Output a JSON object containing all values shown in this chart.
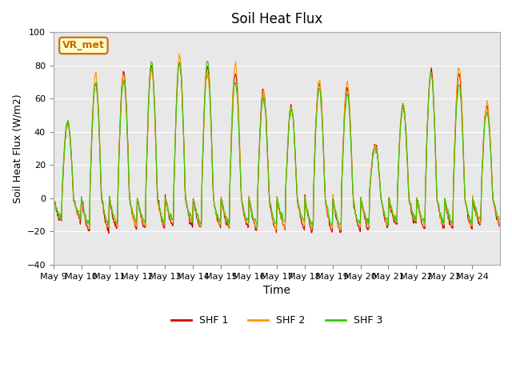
{
  "title": "Soil Heat Flux",
  "ylabel": "Soil Heat Flux (W/m2)",
  "xlabel": "Time",
  "ylim": [
    -40,
    100
  ],
  "yticks": [
    -40,
    -20,
    0,
    20,
    40,
    60,
    80,
    100
  ],
  "x_tick_labels": [
    "May 9",
    "May 10",
    "May 11",
    "May 12",
    "May 13",
    "May 14",
    "May 15",
    "May 16",
    "May 17",
    "May 18",
    "May 19",
    "May 20",
    "May 21",
    "May 22",
    "May 23",
    "May 24"
  ],
  "colors": {
    "SHF1": "#cc0000",
    "SHF2": "#ff9900",
    "SHF3": "#33cc00"
  },
  "legend_labels": [
    "SHF 1",
    "SHF 2",
    "SHF 3"
  ],
  "bg_color": "#e8e8e8",
  "annotation_text": "VR_met",
  "annotation_color": "#cc6600",
  "annotation_bg": "#ffffcc",
  "day_peaks": [
    45,
    70,
    76,
    80,
    82,
    79,
    75,
    65,
    55,
    70,
    67,
    32,
    55,
    77,
    75,
    55
  ],
  "day_troughs": [
    -15,
    -22,
    -20,
    -20,
    -18,
    -20,
    -20,
    -22,
    -20,
    -22,
    -22,
    -20,
    -18,
    -20,
    -20,
    -18
  ]
}
